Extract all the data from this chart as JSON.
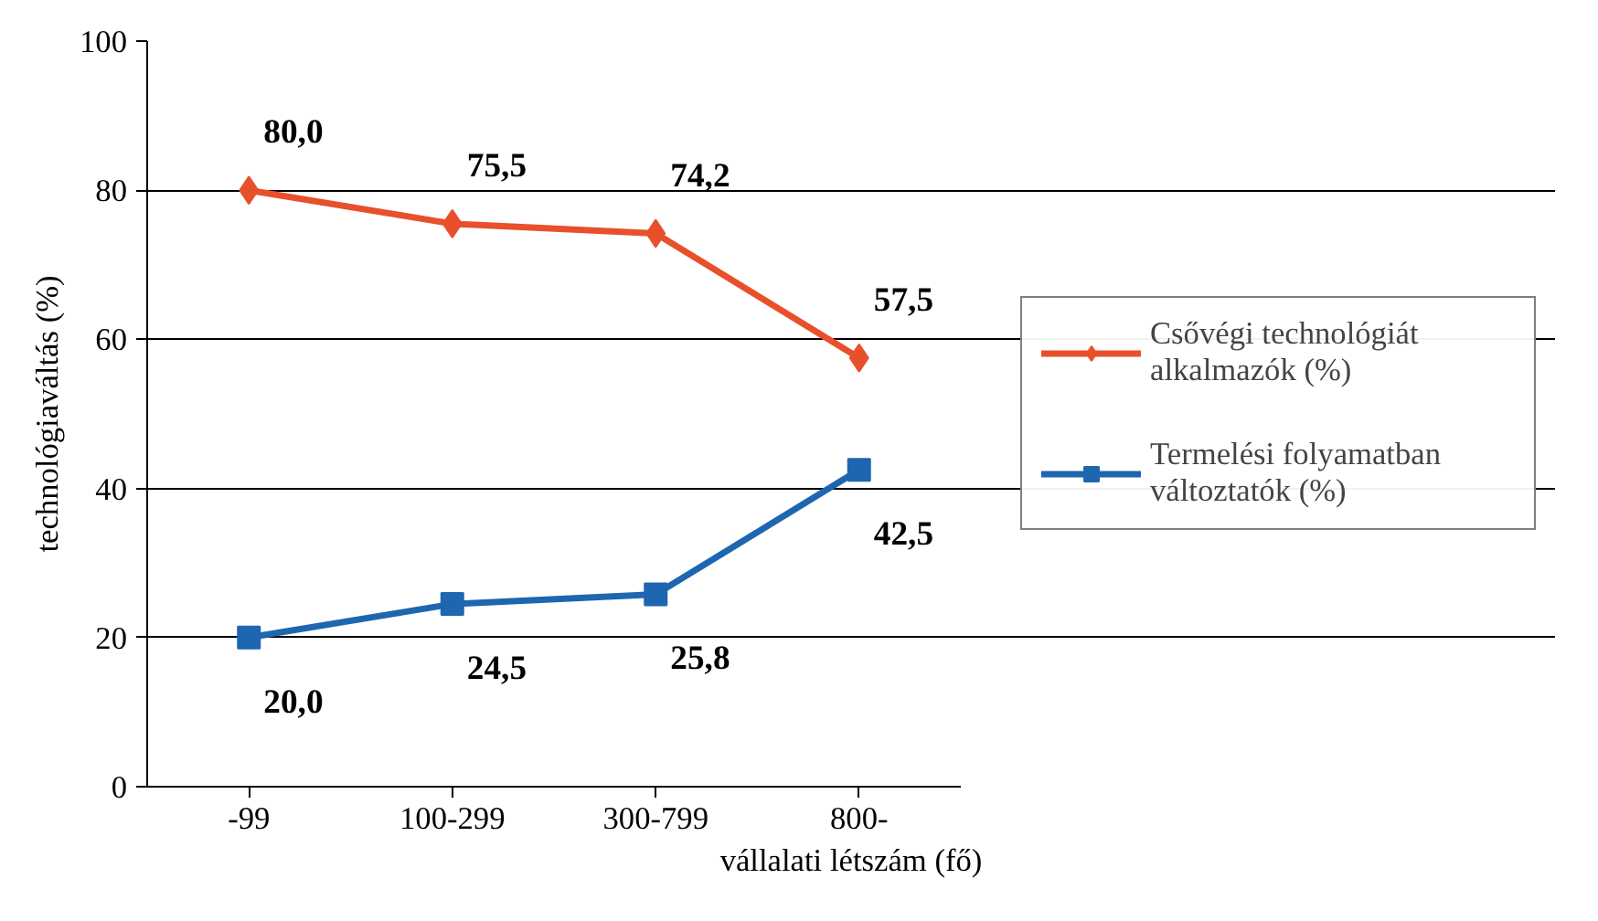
{
  "chart_data": {
    "type": "line",
    "xlabel": "vállalati létszám (fő)",
    "ylabel": "technológiaváltás (%)",
    "categories": [
      "-99",
      "100-299",
      "300-799",
      "800-"
    ],
    "ylim": [
      0,
      100
    ],
    "yticks": [
      0,
      20,
      40,
      60,
      80,
      100
    ],
    "grid": "y",
    "legend": "right",
    "line_style": "solid",
    "series": [
      {
        "name": "Csővégi technológiát alkalmazók (%)",
        "color": "#e8502b",
        "marker": "diamond",
        "values": [
          80.0,
          75.5,
          74.2,
          57.5
        ],
        "value_labels": [
          "80,0",
          "75,5",
          "74,2",
          "57,5"
        ]
      },
      {
        "name": "Termelési folyamatban változtatók (%)",
        "color": "#1f66b0",
        "marker": "square",
        "values": [
          20.0,
          24.5,
          25.8,
          42.5
        ],
        "value_labels": [
          "20,0",
          "24,5",
          "25,8",
          "42,5"
        ]
      }
    ]
  }
}
